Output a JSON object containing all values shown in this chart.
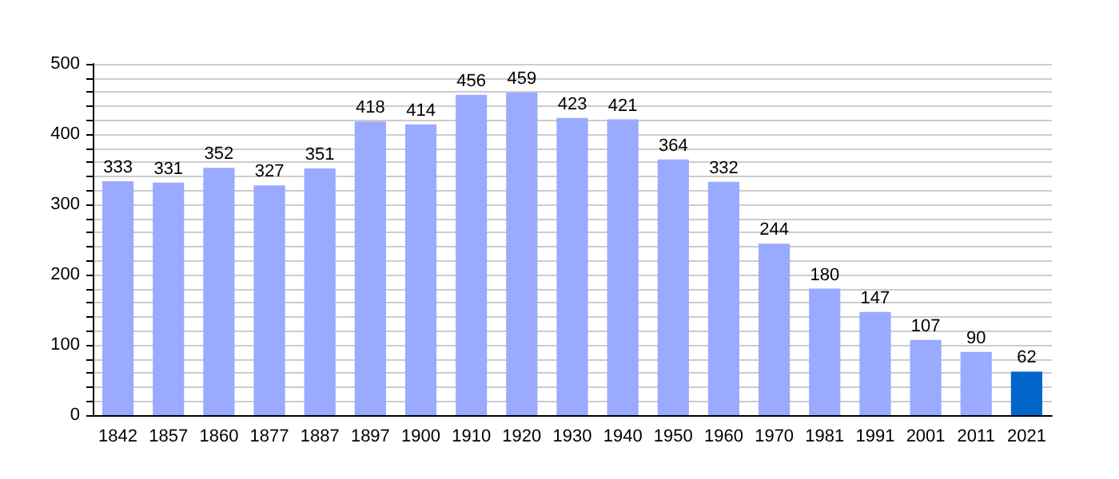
{
  "chart_data": {
    "type": "bar",
    "categories": [
      "1842",
      "1857",
      "1860",
      "1877",
      "1887",
      "1897",
      "1900",
      "1910",
      "1920",
      "1930",
      "1940",
      "1950",
      "1960",
      "1970",
      "1981",
      "1991",
      "2001",
      "2011",
      "2021"
    ],
    "values": [
      333,
      331,
      352,
      327,
      351,
      418,
      414,
      456,
      459,
      423,
      421,
      364,
      332,
      244,
      180,
      147,
      107,
      90,
      62
    ],
    "colors": [
      "#99aaff",
      "#99aaff",
      "#99aaff",
      "#99aaff",
      "#99aaff",
      "#99aaff",
      "#99aaff",
      "#99aaff",
      "#99aaff",
      "#99aaff",
      "#99aaff",
      "#99aaff",
      "#99aaff",
      "#99aaff",
      "#99aaff",
      "#99aaff",
      "#99aaff",
      "#99aaff",
      "#0066cc"
    ],
    "ylim": [
      0,
      500
    ],
    "yticks": [
      0,
      {
        "value": 20,
        "label": null
      },
      {
        "value": 40,
        "label": null
      },
      {
        "value": 60,
        "label": null
      },
      {
        "value": 80,
        "label": null
      },
      100,
      {
        "value": 120,
        "label": null
      },
      {
        "value": 140,
        "label": null
      },
      {
        "value": 160,
        "label": null
      },
      {
        "value": 180,
        "label": null
      },
      200,
      {
        "value": 220,
        "label": null
      },
      {
        "value": 240,
        "label": null
      },
      {
        "value": 260,
        "label": null
      },
      {
        "value": 280,
        "label": null
      },
      300,
      {
        "value": 320,
        "label": null
      },
      {
        "value": 340,
        "label": null
      },
      {
        "value": 360,
        "label": null
      },
      {
        "value": 380,
        "label": null
      },
      400,
      {
        "value": 420,
        "label": null
      },
      {
        "value": 440,
        "label": null
      },
      {
        "value": 460,
        "label": null
      },
      {
        "value": 480,
        "label": null
      },
      500
    ],
    "grid": "y",
    "data_labels": true
  }
}
